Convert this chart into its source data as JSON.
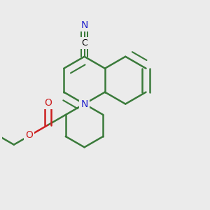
{
  "bg_color": "#ebebeb",
  "bond_color": "#3a7a3a",
  "bond_width": 1.8,
  "N_color": "#2020cc",
  "O_color": "#cc2020",
  "fig_size": [
    3.0,
    3.0
  ],
  "dpi": 100,
  "xlim": [
    0.0,
    1.0
  ],
  "ylim": [
    0.0,
    1.0
  ]
}
